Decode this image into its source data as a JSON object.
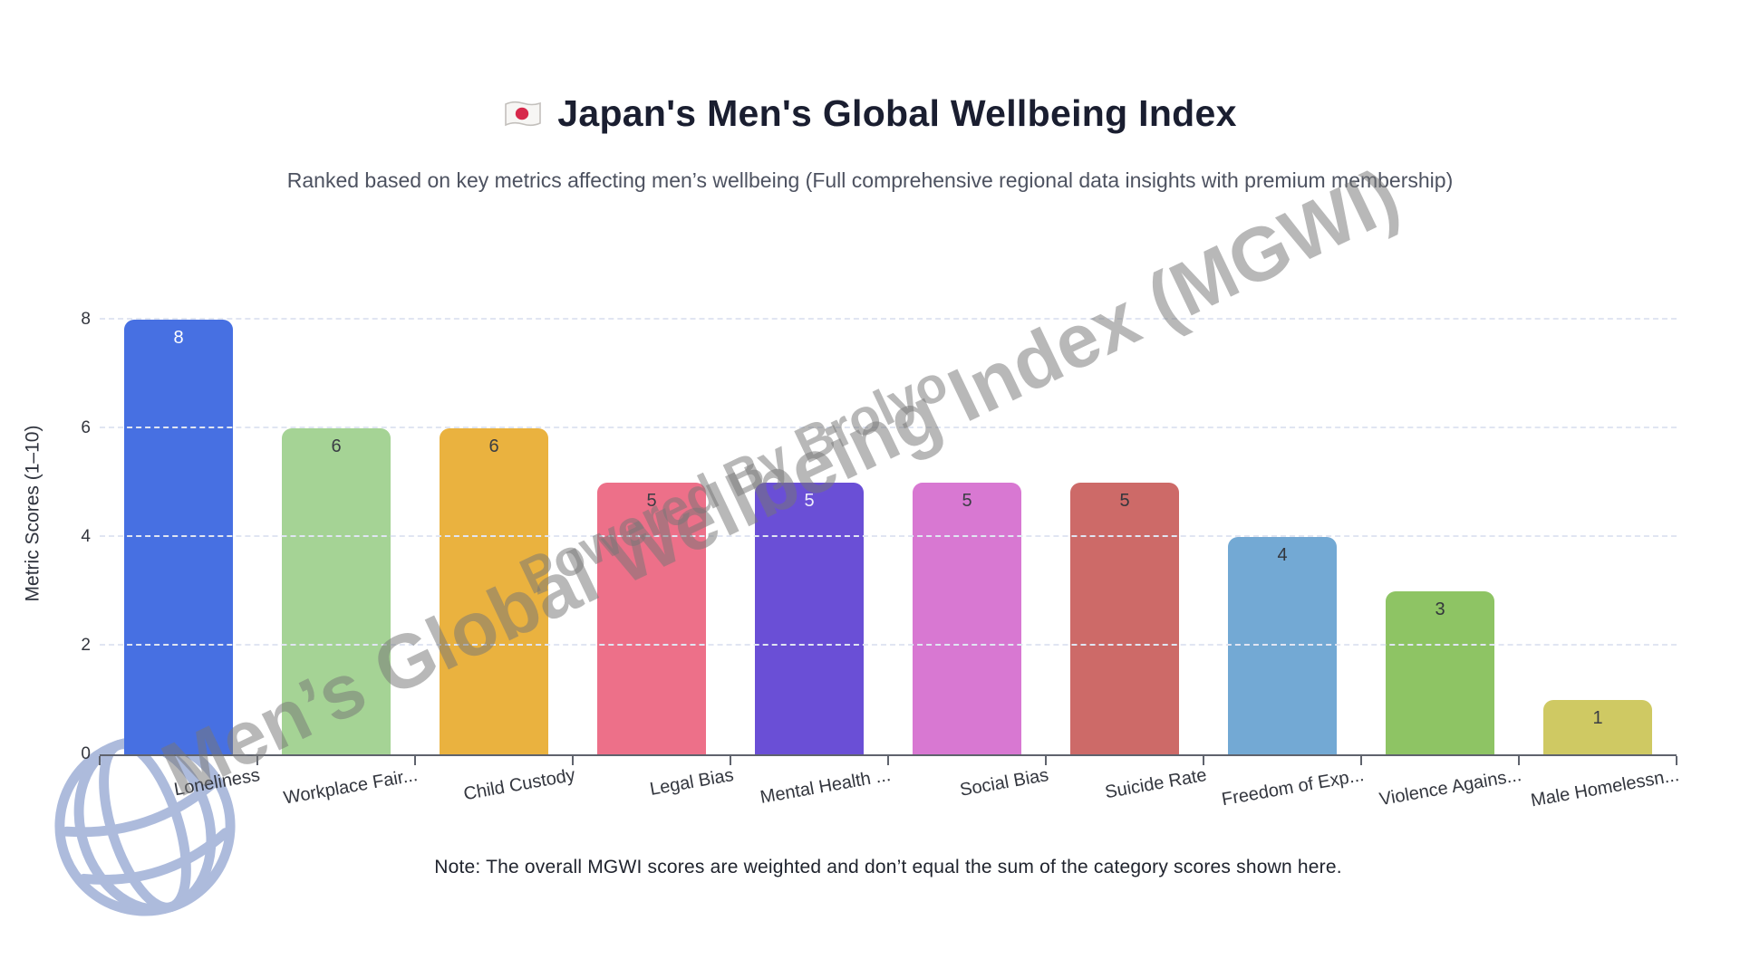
{
  "header": {
    "flag_icon": "japan-flag",
    "title": "Japan's Men's Global Wellbeing Index",
    "subtitle": "Ranked based on key metrics affecting men’s wellbeing (Full comprehensive regional data insights with premium membership)"
  },
  "watermark": {
    "line1": "Men’s Global Wellbeing Index (MGWI)",
    "line2": "Powered By Brolyo",
    "color": "#767676",
    "globe_icon": "globe-watermark",
    "globe_color": "#a9b8db"
  },
  "footer": {
    "note": "Note: The overall MGWI scores are weighted and don’t equal the sum of the category scores shown here."
  },
  "chart_data": {
    "type": "bar",
    "title": "Japan's Men's Global Wellbeing Index",
    "categories": [
      "Loneliness",
      "Workplace Fair...",
      "Child Custody",
      "Legal Bias",
      "Mental Health ...",
      "Social Bias",
      "Suicide Rate",
      "Freedom of Exp...",
      "Violence Agains...",
      "Male Homelessn..."
    ],
    "values": [
      8,
      6,
      6,
      5,
      5,
      5,
      5,
      4,
      3,
      1
    ],
    "bar_colors": [
      "#4770e2",
      "#a5d395",
      "#eab23f",
      "#ed7089",
      "#6a4fd6",
      "#d878d2",
      "#cd6a68",
      "#73a9d4",
      "#8ec464",
      "#cfc963"
    ],
    "value_label_colors": [
      "#ffffff",
      "#3a3d44",
      "#3a3d44",
      "#3a3d44",
      "#efedfb",
      "#3a3d44",
      "#33363c",
      "#33363c",
      "#33363c",
      "#3a3d44"
    ],
    "xlabel": "",
    "ylabel": "Metric Scores (1–10)",
    "yticks": [
      0,
      2,
      4,
      6,
      8
    ],
    "ylim": [
      0,
      8.8
    ],
    "grid": "horizontal-dashed",
    "gridline_color": "#e0e5f2",
    "legend": "none",
    "bar_label_rotation_deg": -10
  }
}
